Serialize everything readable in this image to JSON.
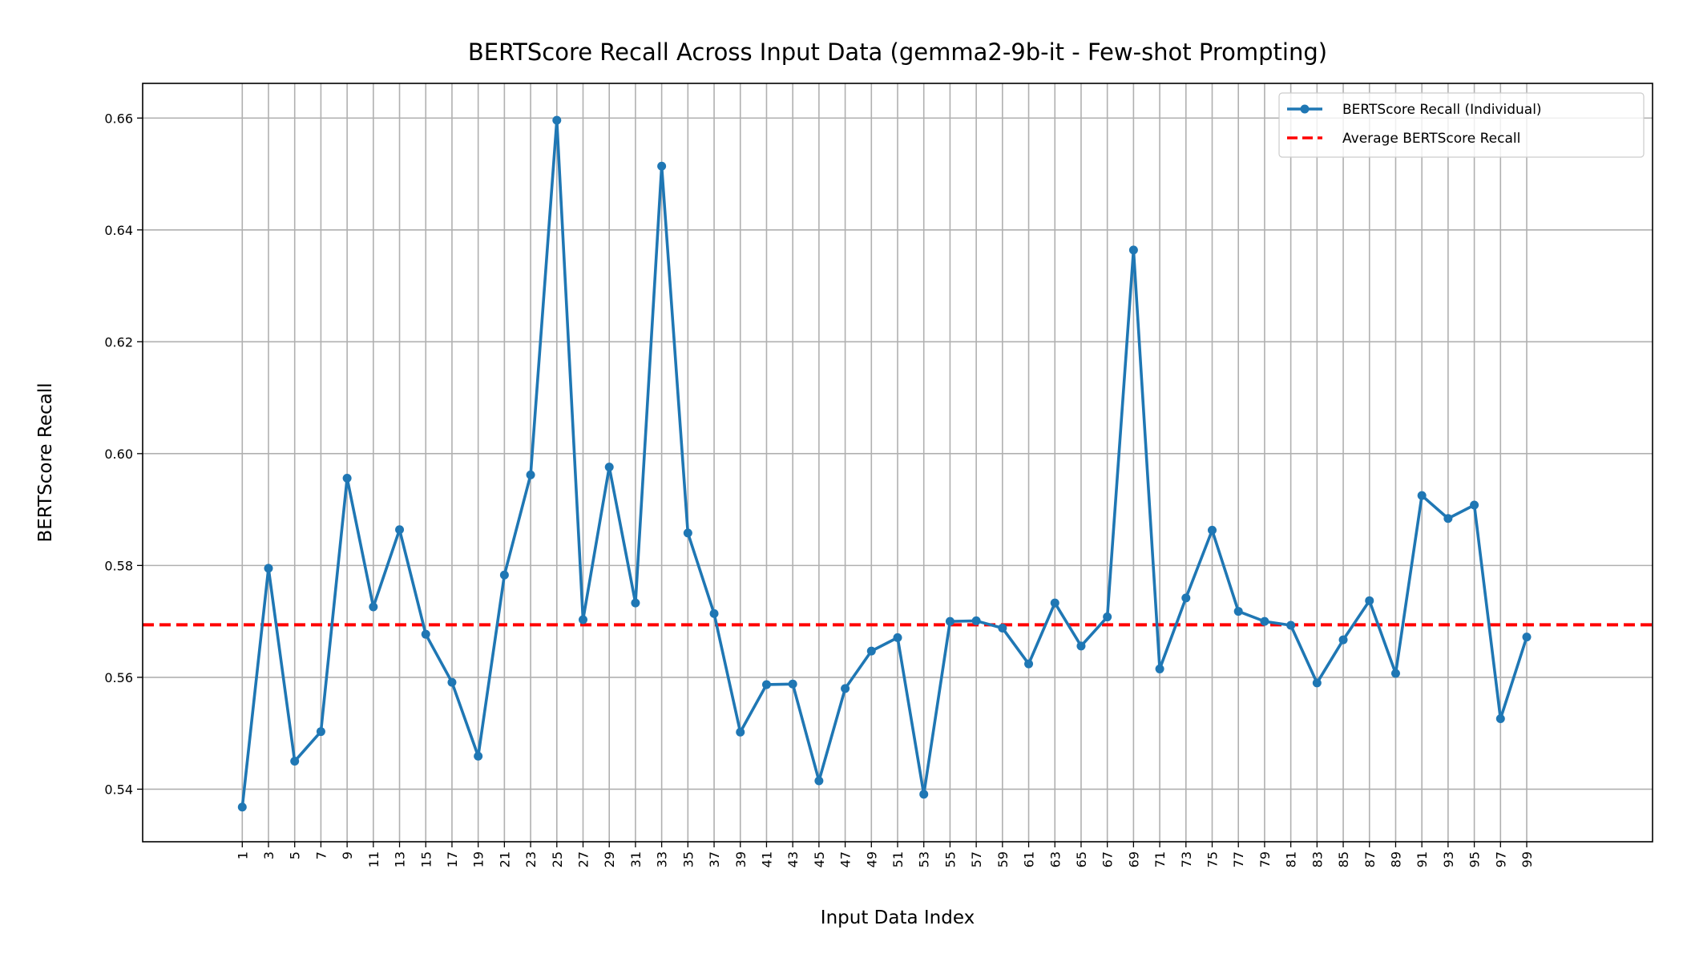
{
  "chart_data": {
    "type": "line",
    "title": "BERTScore Recall Across Input Data (gemma2-9b-it - Few-shot Prompting)",
    "xlabel": "Input Data Index",
    "ylabel": "BERTScore Recall",
    "x": [
      1,
      3,
      5,
      7,
      9,
      11,
      13,
      15,
      17,
      19,
      21,
      23,
      25,
      27,
      29,
      31,
      33,
      35,
      37,
      39,
      41,
      43,
      45,
      47,
      49,
      51,
      53,
      55,
      57,
      59,
      61,
      63,
      65,
      67,
      69,
      71,
      73,
      75,
      77,
      79,
      81,
      83,
      85,
      87,
      89,
      91,
      93,
      95,
      97,
      99
    ],
    "x_ticks": [
      "1",
      "3",
      "5",
      "7",
      "9",
      "11",
      "13",
      "15",
      "17",
      "19",
      "21",
      "23",
      "25",
      "27",
      "29",
      "31",
      "33",
      "35",
      "37",
      "39",
      "41",
      "43",
      "45",
      "47",
      "49",
      "51",
      "53",
      "55",
      "57",
      "59",
      "61",
      "63",
      "65",
      "67",
      "69",
      "71",
      "73",
      "75",
      "77",
      "79",
      "81",
      "83",
      "85",
      "87",
      "89",
      "91",
      "93",
      "95",
      "97",
      "99"
    ],
    "xlim": [
      -6.6,
      108.6
    ],
    "ylim": [
      0.5306,
      0.6662
    ],
    "y_ticks": [
      0.54,
      0.56,
      0.58,
      0.6,
      0.62,
      0.64,
      0.66
    ],
    "y_tick_labels": [
      "0.54",
      "0.56",
      "0.58",
      "0.60",
      "0.62",
      "0.64",
      "0.66"
    ],
    "grid": true,
    "legend_position": "top-right",
    "series": [
      {
        "name": "BERTScore Recall (Individual)",
        "style": "solid-with-markers",
        "color": "#1f77b4",
        "values": [
          0.5368,
          0.5795,
          0.545,
          0.5503,
          0.5956,
          0.5726,
          0.5864,
          0.5677,
          0.5591,
          0.5459,
          0.5783,
          0.5962,
          0.6596,
          0.5703,
          0.5976,
          0.5733,
          0.6514,
          0.5858,
          0.5714,
          0.5502,
          0.5587,
          0.5588,
          0.5415,
          0.558,
          0.5647,
          0.5671,
          0.5391,
          0.57,
          0.5701,
          0.5688,
          0.5624,
          0.5733,
          0.5656,
          0.5708,
          0.6364,
          0.5615,
          0.5742,
          0.5863,
          0.5718,
          0.57,
          0.5693,
          0.559,
          0.5667,
          0.5737,
          0.5607,
          0.5925,
          0.5884,
          0.5908,
          0.5526,
          0.5672
        ]
      },
      {
        "name": "Average BERTScore Recall",
        "style": "dashed",
        "color": "#ff0000",
        "value": 0.5694
      }
    ]
  }
}
